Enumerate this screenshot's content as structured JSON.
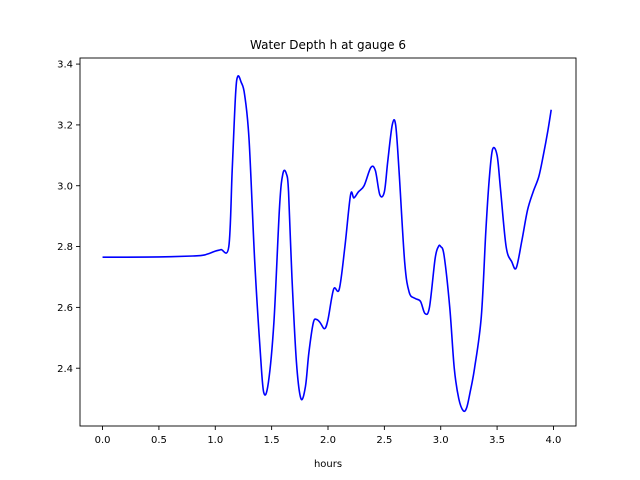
{
  "chart_data": {
    "type": "line",
    "title": "Water Depth h at gauge 6",
    "xlabel": "hours",
    "ylabel": "",
    "xlim": [
      -0.2,
      4.2
    ],
    "ylim": [
      2.21,
      3.42
    ],
    "x_ticks": [
      0.0,
      0.5,
      1.0,
      1.5,
      2.0,
      2.5,
      3.0,
      3.5,
      4.0
    ],
    "x_tick_labels": [
      "0.0",
      "0.5",
      "1.0",
      "1.5",
      "2.0",
      "2.5",
      "3.0",
      "3.5",
      "4.0"
    ],
    "y_ticks": [
      2.4,
      2.6,
      2.8,
      3.0,
      3.2,
      3.4
    ],
    "y_tick_labels": [
      "2.4",
      "2.6",
      "2.8",
      "3.0",
      "3.2",
      "3.4"
    ],
    "grid": false,
    "series": [
      {
        "color": "#0000ff",
        "x": [
          0.0,
          0.2,
          0.5,
          0.8,
          0.9,
          1.0,
          1.05,
          1.12,
          1.15,
          1.18,
          1.2,
          1.23,
          1.26,
          1.3,
          1.35,
          1.4,
          1.43,
          1.47,
          1.52,
          1.57,
          1.6,
          1.63,
          1.65,
          1.68,
          1.72,
          1.76,
          1.8,
          1.83,
          1.87,
          1.9,
          1.93,
          1.97,
          2.0,
          2.05,
          2.1,
          2.15,
          2.2,
          2.23,
          2.27,
          2.32,
          2.38,
          2.42,
          2.46,
          2.5,
          2.53,
          2.57,
          2.6,
          2.63,
          2.68,
          2.72,
          2.77,
          2.82,
          2.86,
          2.9,
          2.95,
          2.98,
          3.0,
          3.03,
          3.08,
          3.12,
          3.16,
          3.2,
          3.23,
          3.26,
          3.3,
          3.36,
          3.4,
          3.43,
          3.46,
          3.5,
          3.53,
          3.58,
          3.63,
          3.67,
          3.72,
          3.77,
          3.82,
          3.87,
          3.91,
          3.95,
          3.98
        ],
        "y": [
          2.765,
          2.765,
          2.766,
          2.769,
          2.772,
          2.785,
          2.79,
          2.8,
          3.05,
          3.3,
          3.36,
          3.34,
          3.3,
          3.15,
          2.75,
          2.45,
          2.32,
          2.35,
          2.55,
          2.93,
          3.04,
          3.04,
          2.98,
          2.7,
          2.42,
          2.3,
          2.34,
          2.45,
          2.55,
          2.56,
          2.55,
          2.53,
          2.56,
          2.66,
          2.66,
          2.8,
          2.97,
          2.96,
          2.98,
          3.0,
          3.06,
          3.05,
          2.97,
          2.98,
          3.08,
          3.2,
          3.2,
          3.05,
          2.75,
          2.65,
          2.63,
          2.62,
          2.58,
          2.6,
          2.76,
          2.8,
          2.8,
          2.77,
          2.6,
          2.4,
          2.3,
          2.26,
          2.27,
          2.32,
          2.4,
          2.57,
          2.85,
          3.02,
          3.12,
          3.1,
          2.99,
          2.8,
          2.75,
          2.73,
          2.82,
          2.92,
          2.98,
          3.03,
          3.1,
          3.18,
          3.25
        ]
      }
    ]
  }
}
